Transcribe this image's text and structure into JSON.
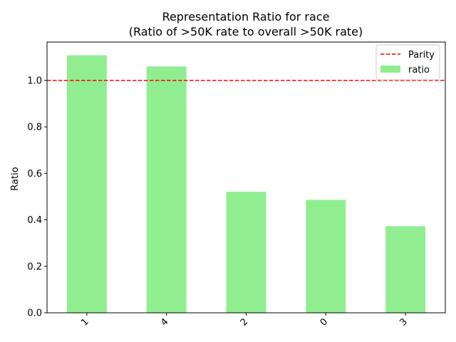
{
  "chart_data": {
    "type": "bar",
    "title": "Representation Ratio for race",
    "subtitle": "(Ratio of >50K rate to overall >50K rate)",
    "xlabel": "",
    "ylabel": "Ratio",
    "categories": [
      "1",
      "4",
      "2",
      "0",
      "3"
    ],
    "series": [
      {
        "name": "ratio",
        "values": [
          1.108,
          1.06,
          0.521,
          0.486,
          0.373
        ],
        "color": "#90ee90"
      }
    ],
    "reference_line": {
      "name": "Parity",
      "y": 1.0,
      "color": "#ff0000",
      "style": "dashed"
    },
    "ylim": [
      0,
      1.165
    ],
    "yticks": [
      0.0,
      0.2,
      0.4,
      0.6,
      0.8,
      1.0
    ],
    "ytick_labels": [
      "0.0",
      "0.2",
      "0.4",
      "0.6",
      "0.8",
      "1.0"
    ],
    "xtick_rotation": 45,
    "grid": false,
    "legend_position": "top-right",
    "legend": [
      {
        "label": "Parity",
        "kind": "line"
      },
      {
        "label": "ratio",
        "kind": "patch"
      }
    ]
  }
}
